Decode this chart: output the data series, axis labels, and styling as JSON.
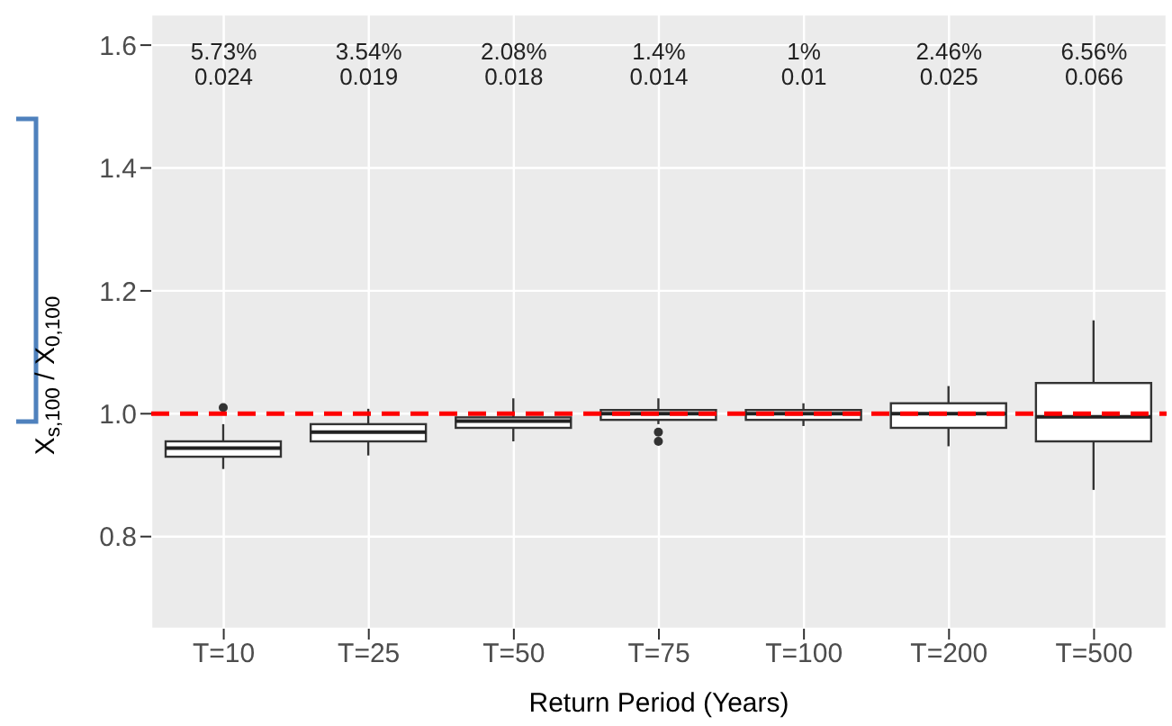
{
  "chart_data": {
    "type": "box",
    "xlabel": "Return Period (Years)",
    "ylabel": "X$_{s,100}$ / X$_{0,100}$",
    "categories": [
      "T=10",
      "T=25",
      "T=50",
      "T=75",
      "T=100",
      "T=200",
      "T=500"
    ],
    "boxes": [
      {
        "low": 0.91,
        "q1": 0.93,
        "median": 0.944,
        "q3": 0.955,
        "high": 0.983,
        "outliers": [
          1.01
        ]
      },
      {
        "low": 0.932,
        "q1": 0.955,
        "median": 0.97,
        "q3": 0.983,
        "high": 1.008
      },
      {
        "low": 0.955,
        "q1": 0.977,
        "median": 0.988,
        "q3": 0.994,
        "high": 1.025
      },
      {
        "low": 0.983,
        "q1": 0.99,
        "median": 1.0,
        "q3": 1.006,
        "high": 1.025,
        "outliers": [
          0.97,
          0.955
        ]
      },
      {
        "low": 0.98,
        "q1": 0.99,
        "median": 1.0,
        "q3": 1.006,
        "high": 1.017
      },
      {
        "low": 0.947,
        "q1": 0.977,
        "median": 1.0,
        "q3": 1.017,
        "high": 1.045
      },
      {
        "low": 0.876,
        "q1": 0.955,
        "median": 0.995,
        "q3": 1.05,
        "high": 1.152
      }
    ],
    "ylim": [
      0.65,
      1.65
    ],
    "yticks": [
      0.8,
      {
        "value": 1.0,
        "label": "1.0"
      },
      1.2,
      1.4,
      1.6
    ],
    "grid": true,
    "ref_lines": [
      {
        "axis": "y",
        "value": 1.0,
        "color": "#ff0000",
        "line_style": "dashed"
      }
    ],
    "annotations": [
      "5.73%",
      "0.024",
      "3.54%",
      "0.019",
      "2.08%",
      "0.018",
      "1.4%",
      "0.014",
      "1%",
      "0.01",
      "2.46%",
      "0.025",
      "6.56%",
      "0.066"
    ]
  }
}
